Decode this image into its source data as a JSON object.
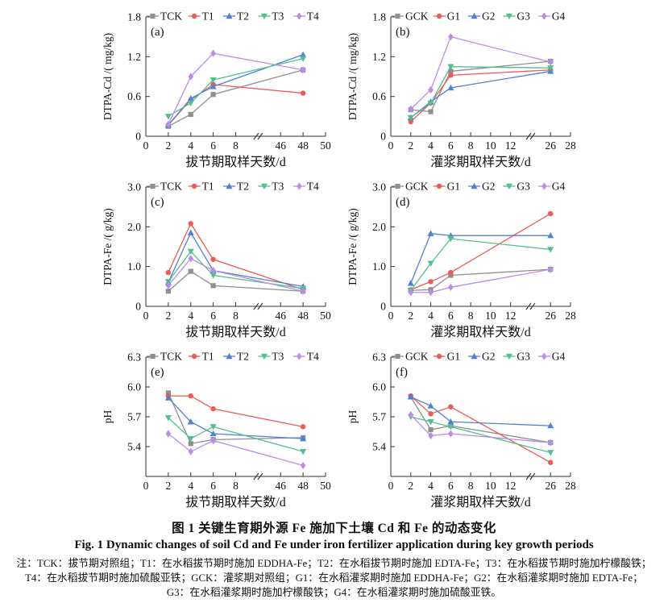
{
  "figure": {
    "caption_cn": "图 1  关键生育期外源 Fe 施加下土壤 Cd 和 Fe 的动态变化",
    "caption_en": "Fig. 1  Dynamic changes of soil Cd and Fe under iron fertilizer application during key growth periods",
    "notes": [
      "注：TCK：拔节期对照组；T1：在水稻拔节期时施加 EDDHA-Fe；T2：在水稻拔节期时施加 EDTA-Fe；T3：在水稻拔节期时施加柠檬酸铁；",
      "T4：在水稻拔节期时施加硫酸亚铁；GCK：灌浆期对照组；G1：在水稻灌浆期时施加 EDDHA-Fe；G2：在水稻灌浆期时施加 EDTA-Fe；",
      "G3：在水稻灌浆期时施加柠檬酸铁；G4：在水稻灌浆期时施加硫酸亚铁。"
    ]
  },
  "colors": {
    "gray": "#8f8f8f",
    "red": "#ec5b55",
    "blue": "#5081d6",
    "green": "#52bf8e",
    "purple": "#b98de8",
    "axis": "#333333",
    "text": "#111111"
  },
  "chart_data": [
    {
      "id": "a",
      "type": "line",
      "panel_label": "(a)",
      "ylabel": "DTPA-Cd /( mg/kg)",
      "xlabel": "拔节期取样天数/d",
      "legend_position": "top",
      "ylim": [
        0,
        1.8
      ],
      "yticks": [
        {
          "v": 0,
          "label": "0"
        },
        {
          "v": 0.6,
          "label": "0.6"
        },
        {
          "v": 1.2,
          "label": "1.2"
        },
        {
          "v": 1.8,
          "label": "1.8"
        }
      ],
      "xticks": [
        {
          "slot": 0,
          "label": "0"
        },
        {
          "slot": 1,
          "label": "2"
        },
        {
          "slot": 2,
          "label": "4"
        },
        {
          "slot": 3,
          "label": "6"
        },
        {
          "slot": 4,
          "label": "8"
        },
        {
          "slot": 6,
          "label": "46"
        },
        {
          "slot": 7,
          "label": "48"
        },
        {
          "slot": 8,
          "label": "50"
        }
      ],
      "break_slot": 5,
      "max_slot": 8,
      "x": [
        2,
        4,
        6,
        48
      ],
      "x_slots": [
        1,
        2,
        3,
        7
      ],
      "series": [
        {
          "name": "TCK",
          "color": "#8f8f8f",
          "marker": "square",
          "values": [
            0.15,
            0.33,
            0.63,
            1.0
          ]
        },
        {
          "name": "T1",
          "color": "#ec5b55",
          "marker": "circle",
          "values": [
            0.17,
            0.55,
            0.78,
            0.65
          ]
        },
        {
          "name": "T2",
          "color": "#5081d6",
          "marker": "triangle-up",
          "values": [
            0.17,
            0.57,
            0.75,
            1.23
          ]
        },
        {
          "name": "T3",
          "color": "#52bf8e",
          "marker": "triangle-down",
          "values": [
            0.3,
            0.5,
            0.85,
            1.17
          ]
        },
        {
          "name": "T4",
          "color": "#b98de8",
          "marker": "diamond",
          "values": [
            0.18,
            0.9,
            1.25,
            1.0
          ]
        }
      ]
    },
    {
      "id": "b",
      "type": "line",
      "panel_label": "(b)",
      "ylabel": "DTPA-Cd /( mg/kg)",
      "xlabel": "灌浆期取样天数/d",
      "legend_position": "top",
      "ylim": [
        0,
        1.8
      ],
      "yticks": [
        {
          "v": 0,
          "label": "0"
        },
        {
          "v": 0.6,
          "label": "0.6"
        },
        {
          "v": 1.2,
          "label": "1.2"
        },
        {
          "v": 1.8,
          "label": "1.8"
        }
      ],
      "xticks": [
        {
          "slot": 0,
          "label": "0"
        },
        {
          "slot": 1,
          "label": "2"
        },
        {
          "slot": 2,
          "label": "4"
        },
        {
          "slot": 3,
          "label": "6"
        },
        {
          "slot": 4,
          "label": "8"
        },
        {
          "slot": 5,
          "label": "10"
        },
        {
          "slot": 6,
          "label": "12"
        },
        {
          "slot": 8,
          "label": "26"
        },
        {
          "slot": 9,
          "label": "28"
        }
      ],
      "break_slot": 7,
      "max_slot": 9,
      "x": [
        2,
        4,
        6,
        26
      ],
      "x_slots": [
        1,
        2,
        3,
        8
      ],
      "series": [
        {
          "name": "GCK",
          "color": "#8f8f8f",
          "marker": "square",
          "values": [
            0.4,
            0.37,
            0.98,
            1.13
          ]
        },
        {
          "name": "G1",
          "color": "#ec5b55",
          "marker": "circle",
          "values": [
            0.22,
            0.5,
            0.92,
            1.0
          ]
        },
        {
          "name": "G2",
          "color": "#5081d6",
          "marker": "triangle-up",
          "values": [
            0.28,
            0.52,
            0.73,
            0.98
          ]
        },
        {
          "name": "G3",
          "color": "#52bf8e",
          "marker": "triangle-down",
          "values": [
            0.28,
            0.5,
            1.05,
            1.03
          ]
        },
        {
          "name": "G4",
          "color": "#b98de8",
          "marker": "diamond",
          "values": [
            0.41,
            0.7,
            1.5,
            1.12
          ]
        }
      ]
    },
    {
      "id": "c",
      "type": "line",
      "panel_label": "(c)",
      "ylabel": "DTPA-Fe /( g/kg)",
      "xlabel": "拔节期取样天数/d",
      "legend_position": "top",
      "ylim": [
        0,
        3.0
      ],
      "yticks": [
        {
          "v": 0,
          "label": "0"
        },
        {
          "v": 1.0,
          "label": "1.0"
        },
        {
          "v": 2.0,
          "label": "2.0"
        },
        {
          "v": 3.0,
          "label": "3.0"
        }
      ],
      "xticks": [
        {
          "slot": 0,
          "label": "0"
        },
        {
          "slot": 1,
          "label": "2"
        },
        {
          "slot": 2,
          "label": "4"
        },
        {
          "slot": 3,
          "label": "6"
        },
        {
          "slot": 4,
          "label": "8"
        },
        {
          "slot": 6,
          "label": "46"
        },
        {
          "slot": 7,
          "label": "48"
        },
        {
          "slot": 8,
          "label": "50"
        }
      ],
      "break_slot": 5,
      "max_slot": 8,
      "x": [
        2,
        4,
        6,
        48
      ],
      "x_slots": [
        1,
        2,
        3,
        7
      ],
      "series": [
        {
          "name": "TCK",
          "color": "#8f8f8f",
          "marker": "square",
          "values": [
            0.38,
            0.88,
            0.52,
            0.38
          ]
        },
        {
          "name": "T1",
          "color": "#ec5b55",
          "marker": "circle",
          "values": [
            0.85,
            2.08,
            1.18,
            0.42
          ]
        },
        {
          "name": "T2",
          "color": "#5081d6",
          "marker": "triangle-up",
          "values": [
            0.6,
            1.85,
            0.9,
            0.5
          ]
        },
        {
          "name": "T3",
          "color": "#52bf8e",
          "marker": "triangle-down",
          "values": [
            0.62,
            1.38,
            0.78,
            0.45
          ]
        },
        {
          "name": "T4",
          "color": "#b98de8",
          "marker": "diamond",
          "values": [
            0.52,
            1.2,
            0.9,
            0.38
          ]
        }
      ]
    },
    {
      "id": "d",
      "type": "line",
      "panel_label": "(d)",
      "ylabel": "DTPA-Fe /( g/kg)",
      "xlabel": "灌浆期取样天数/d",
      "legend_position": "top",
      "ylim": [
        0,
        3.0
      ],
      "yticks": [
        {
          "v": 0,
          "label": "0"
        },
        {
          "v": 1.0,
          "label": "1.0"
        },
        {
          "v": 2.0,
          "label": "2.0"
        },
        {
          "v": 3.0,
          "label": "3.0"
        }
      ],
      "xticks": [
        {
          "slot": 0,
          "label": "0"
        },
        {
          "slot": 1,
          "label": "2"
        },
        {
          "slot": 2,
          "label": "4"
        },
        {
          "slot": 3,
          "label": "6"
        },
        {
          "slot": 4,
          "label": "8"
        },
        {
          "slot": 5,
          "label": "10"
        },
        {
          "slot": 6,
          "label": "12"
        },
        {
          "slot": 8,
          "label": "26"
        },
        {
          "slot": 9,
          "label": "28"
        }
      ],
      "break_slot": 7,
      "max_slot": 9,
      "x": [
        2,
        4,
        6,
        26
      ],
      "x_slots": [
        1,
        2,
        3,
        8
      ],
      "series": [
        {
          "name": "GCK",
          "color": "#8f8f8f",
          "marker": "square",
          "values": [
            0.4,
            0.42,
            0.78,
            0.93
          ]
        },
        {
          "name": "G1",
          "color": "#ec5b55",
          "marker": "circle",
          "values": [
            0.42,
            0.62,
            0.85,
            2.33
          ]
        },
        {
          "name": "G2",
          "color": "#5081d6",
          "marker": "triangle-up",
          "values": [
            0.58,
            1.83,
            1.78,
            1.78
          ]
        },
        {
          "name": "G3",
          "color": "#52bf8e",
          "marker": "triangle-down",
          "values": [
            0.4,
            1.08,
            1.7,
            1.43
          ]
        },
        {
          "name": "G4",
          "color": "#b98de8",
          "marker": "diamond",
          "values": [
            0.35,
            0.35,
            0.48,
            0.93
          ]
        }
      ]
    },
    {
      "id": "e",
      "type": "line",
      "panel_label": "(e)",
      "ylabel": "pH",
      "xlabel": "拔节期取样天数/d",
      "legend_position": "top",
      "ylim": [
        5.1,
        6.3
      ],
      "yticks": [
        {
          "v": 5.4,
          "label": "5.4"
        },
        {
          "v": 5.7,
          "label": "5.7"
        },
        {
          "v": 6.0,
          "label": "6.0"
        },
        {
          "v": 6.3,
          "label": "6.3"
        }
      ],
      "xticks": [
        {
          "slot": 0,
          "label": "0"
        },
        {
          "slot": 1,
          "label": "2"
        },
        {
          "slot": 2,
          "label": "4"
        },
        {
          "slot": 3,
          "label": "6"
        },
        {
          "slot": 4,
          "label": "8"
        },
        {
          "slot": 6,
          "label": "46"
        },
        {
          "slot": 7,
          "label": "48"
        },
        {
          "slot": 8,
          "label": "50"
        }
      ],
      "break_slot": 5,
      "max_slot": 8,
      "x": [
        2,
        4,
        6,
        48
      ],
      "x_slots": [
        1,
        2,
        3,
        7
      ],
      "series": [
        {
          "name": "TCK",
          "color": "#8f8f8f",
          "marker": "square",
          "values": [
            5.94,
            5.43,
            5.47,
            5.49
          ]
        },
        {
          "name": "T1",
          "color": "#ec5b55",
          "marker": "circle",
          "values": [
            5.91,
            5.91,
            5.78,
            5.6
          ]
        },
        {
          "name": "T2",
          "color": "#5081d6",
          "marker": "triangle-up",
          "values": [
            5.89,
            5.65,
            5.53,
            5.48
          ]
        },
        {
          "name": "T3",
          "color": "#52bf8e",
          "marker": "triangle-down",
          "values": [
            5.69,
            5.48,
            5.6,
            5.35
          ]
        },
        {
          "name": "T4",
          "color": "#b98de8",
          "marker": "diamond",
          "values": [
            5.53,
            5.35,
            5.46,
            5.21
          ]
        }
      ]
    },
    {
      "id": "f",
      "type": "line",
      "panel_label": "(f)",
      "ylabel": "pH",
      "xlabel": "灌浆期取样天数/d",
      "legend_position": "top",
      "ylim": [
        5.1,
        6.3
      ],
      "yticks": [
        {
          "v": 5.4,
          "label": "5.4"
        },
        {
          "v": 5.7,
          "label": "5.7"
        },
        {
          "v": 6.0,
          "label": "6.0"
        },
        {
          "v": 6.3,
          "label": "6.3"
        }
      ],
      "xticks": [
        {
          "slot": 0,
          "label": "0"
        },
        {
          "slot": 1,
          "label": "2"
        },
        {
          "slot": 2,
          "label": "4"
        },
        {
          "slot": 3,
          "label": "6"
        },
        {
          "slot": 4,
          "label": "8"
        },
        {
          "slot": 5,
          "label": "10"
        },
        {
          "slot": 6,
          "label": "12"
        },
        {
          "slot": 8,
          "label": "26"
        },
        {
          "slot": 9,
          "label": "28"
        }
      ],
      "break_slot": 7,
      "max_slot": 9,
      "x": [
        2,
        4,
        6,
        26
      ],
      "x_slots": [
        1,
        2,
        3,
        8
      ],
      "series": [
        {
          "name": "GCK",
          "color": "#8f8f8f",
          "marker": "square",
          "values": [
            5.9,
            5.57,
            5.61,
            5.44
          ]
        },
        {
          "name": "G1",
          "color": "#ec5b55",
          "marker": "circle",
          "values": [
            5.91,
            5.73,
            5.8,
            5.24
          ]
        },
        {
          "name": "G2",
          "color": "#5081d6",
          "marker": "triangle-up",
          "values": [
            5.9,
            5.81,
            5.65,
            5.61
          ]
        },
        {
          "name": "G3",
          "color": "#52bf8e",
          "marker": "triangle-down",
          "values": [
            5.7,
            5.65,
            5.6,
            5.34
          ]
        },
        {
          "name": "G4",
          "color": "#b98de8",
          "marker": "diamond",
          "values": [
            5.72,
            5.51,
            5.53,
            5.44
          ]
        }
      ]
    }
  ]
}
